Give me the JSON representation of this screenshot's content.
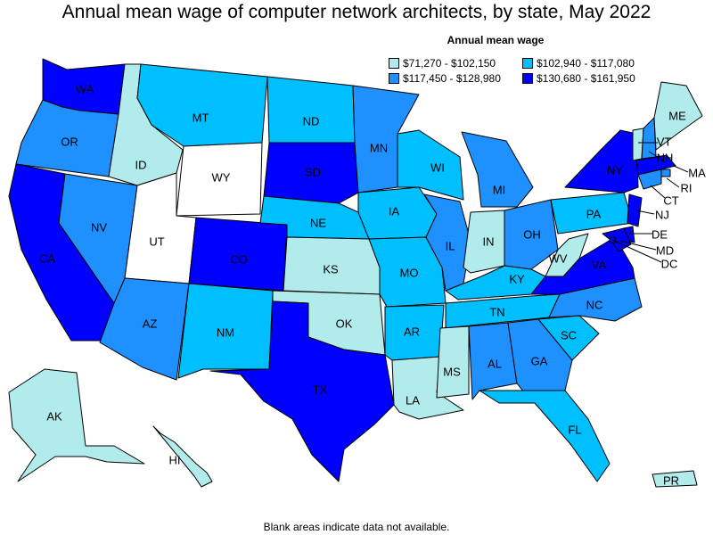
{
  "title": "Annual mean wage of computer network architects, by state, May 2022",
  "legend": {
    "title": "Annual mean wage",
    "items": [
      {
        "label": "$71,270 - $102,150",
        "color": "#b2ebeb"
      },
      {
        "label": "$102,940 - $117,080",
        "color": "#00bfff"
      },
      {
        "label": "$117,450 - $128,980",
        "color": "#1e90ff"
      },
      {
        "label": "$130,680 - $161,950",
        "color": "#0000ff"
      }
    ]
  },
  "footer": "Blank areas indicate data not available.",
  "no_data_color": "#ffffff",
  "states": [
    {
      "abbr": "WA",
      "tier": 3
    },
    {
      "abbr": "OR",
      "tier": 2
    },
    {
      "abbr": "CA",
      "tier": 3
    },
    {
      "abbr": "NV",
      "tier": 2
    },
    {
      "abbr": "ID",
      "tier": 0
    },
    {
      "abbr": "MT",
      "tier": 1
    },
    {
      "abbr": "WY",
      "tier": null
    },
    {
      "abbr": "UT",
      "tier": null
    },
    {
      "abbr": "AZ",
      "tier": 2
    },
    {
      "abbr": "CO",
      "tier": 3
    },
    {
      "abbr": "NM",
      "tier": 1
    },
    {
      "abbr": "ND",
      "tier": 1
    },
    {
      "abbr": "SD",
      "tier": 3
    },
    {
      "abbr": "NE",
      "tier": 1
    },
    {
      "abbr": "KS",
      "tier": 0
    },
    {
      "abbr": "OK",
      "tier": 0
    },
    {
      "abbr": "TX",
      "tier": 3
    },
    {
      "abbr": "MN",
      "tier": 2
    },
    {
      "abbr": "IA",
      "tier": 1
    },
    {
      "abbr": "MO",
      "tier": 1
    },
    {
      "abbr": "AR",
      "tier": 1
    },
    {
      "abbr": "LA",
      "tier": 0
    },
    {
      "abbr": "WI",
      "tier": 1
    },
    {
      "abbr": "IL",
      "tier": 2
    },
    {
      "abbr": "MI",
      "tier": 2
    },
    {
      "abbr": "IN",
      "tier": 0
    },
    {
      "abbr": "OH",
      "tier": 2
    },
    {
      "abbr": "KY",
      "tier": 1
    },
    {
      "abbr": "TN",
      "tier": 1
    },
    {
      "abbr": "MS",
      "tier": 0
    },
    {
      "abbr": "AL",
      "tier": 2
    },
    {
      "abbr": "GA",
      "tier": 2
    },
    {
      "abbr": "FL",
      "tier": 1
    },
    {
      "abbr": "SC",
      "tier": 1
    },
    {
      "abbr": "NC",
      "tier": 2
    },
    {
      "abbr": "VA",
      "tier": 3
    },
    {
      "abbr": "WV",
      "tier": 0
    },
    {
      "abbr": "PA",
      "tier": 1
    },
    {
      "abbr": "NY",
      "tier": 3
    },
    {
      "abbr": "VT",
      "tier": 0
    },
    {
      "abbr": "NH",
      "tier": 2
    },
    {
      "abbr": "ME",
      "tier": 0
    },
    {
      "abbr": "MA",
      "tier": 3
    },
    {
      "abbr": "RI",
      "tier": 2
    },
    {
      "abbr": "CT",
      "tier": 2
    },
    {
      "abbr": "NJ",
      "tier": 3
    },
    {
      "abbr": "DE",
      "tier": 3
    },
    {
      "abbr": "MD",
      "tier": 3
    },
    {
      "abbr": "DC",
      "tier": 3
    },
    {
      "abbr": "AK",
      "tier": 0
    },
    {
      "abbr": "HI",
      "tier": 0
    },
    {
      "abbr": "PR",
      "tier": 0
    }
  ]
}
